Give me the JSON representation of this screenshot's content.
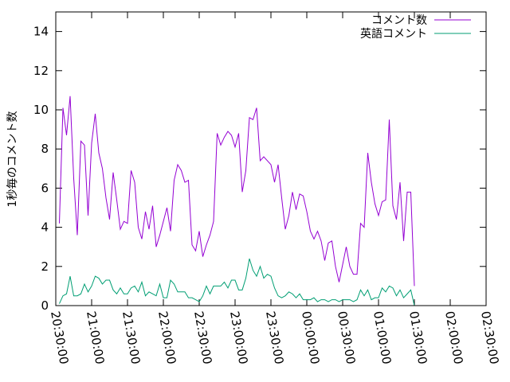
{
  "chart_data": {
    "type": "line",
    "title": "",
    "xlabel": "",
    "ylabel": "1秒毎のコメント数",
    "xlim": [
      "20:30:00",
      "02:30:00"
    ],
    "ylim": [
      0,
      15
    ],
    "x_ticks": [
      "20:30:00",
      "21:00:00",
      "21:30:00",
      "22:00:00",
      "22:30:00",
      "23:00:00",
      "23:30:00",
      "00:00:00",
      "00:30:00",
      "01:00:00",
      "01:30:00",
      "02:00:00",
      "02:30:00"
    ],
    "y_ticks": [
      0,
      2,
      4,
      6,
      8,
      10,
      12,
      14
    ],
    "grid": false,
    "legend_position": "top-right",
    "sample_interval": "3 min",
    "x_start": "20:33:00",
    "series": [
      {
        "name": "コメント数",
        "color": "#9400d3",
        "values": [
          4.2,
          10.1,
          8.7,
          10.7,
          6.5,
          3.6,
          8.4,
          8.2,
          4.6,
          8.3,
          9.8,
          7.8,
          7.0,
          5.5,
          4.4,
          6.8,
          5.4,
          3.9,
          4.3,
          4.2,
          6.9,
          6.3,
          4.0,
          3.4,
          4.8,
          3.9,
          5.1,
          3.0,
          3.6,
          4.3,
          5.0,
          3.8,
          6.4,
          7.2,
          6.9,
          6.3,
          6.4,
          3.1,
          2.8,
          3.8,
          2.5,
          3.1,
          3.6,
          4.3,
          8.8,
          8.2,
          8.6,
          8.9,
          8.7,
          8.1,
          8.8,
          5.8,
          6.9,
          9.6,
          9.5,
          10.1,
          7.4,
          7.6,
          7.4,
          7.2,
          6.3,
          7.2,
          5.5,
          3.9,
          4.6,
          5.8,
          4.9,
          5.7,
          5.6,
          4.8,
          3.8,
          3.4,
          3.8,
          3.3,
          2.3,
          3.2,
          3.3,
          2.0,
          1.2,
          2.1,
          3.0,
          2.0,
          1.6,
          1.6,
          4.2,
          4.0,
          7.8,
          6.3,
          5.2,
          4.6,
          5.3,
          5.4,
          9.5,
          5.1,
          4.4,
          6.3,
          3.3,
          5.8,
          5.8,
          1.0
        ]
      },
      {
        "name": "英語コメント",
        "color": "#009e73",
        "values": [
          0.1,
          0.5,
          0.6,
          1.5,
          0.5,
          0.5,
          0.6,
          1.1,
          0.7,
          1.0,
          1.5,
          1.4,
          1.1,
          1.3,
          1.3,
          0.8,
          0.6,
          0.9,
          0.6,
          0.6,
          0.9,
          1.0,
          0.7,
          1.2,
          0.5,
          0.7,
          0.6,
          0.5,
          1.1,
          0.4,
          0.4,
          1.3,
          1.1,
          0.7,
          0.7,
          0.7,
          0.4,
          0.4,
          0.3,
          0.2,
          0.5,
          1.0,
          0.6,
          1.0,
          1.0,
          1.0,
          1.2,
          0.9,
          1.3,
          1.3,
          0.8,
          0.8,
          1.4,
          2.4,
          1.8,
          1.5,
          2.0,
          1.4,
          1.6,
          1.5,
          0.9,
          0.5,
          0.4,
          0.5,
          0.7,
          0.6,
          0.4,
          0.6,
          0.3,
          0.3,
          0.3,
          0.4,
          0.2,
          0.3,
          0.3,
          0.2,
          0.3,
          0.3,
          0.2,
          0.3,
          0.3,
          0.3,
          0.2,
          0.3,
          0.8,
          0.5,
          0.8,
          0.3,
          0.4,
          0.4,
          0.9,
          0.7,
          1.0,
          0.9,
          0.5,
          0.8,
          0.4,
          0.6,
          0.8,
          0.0
        ]
      }
    ]
  }
}
